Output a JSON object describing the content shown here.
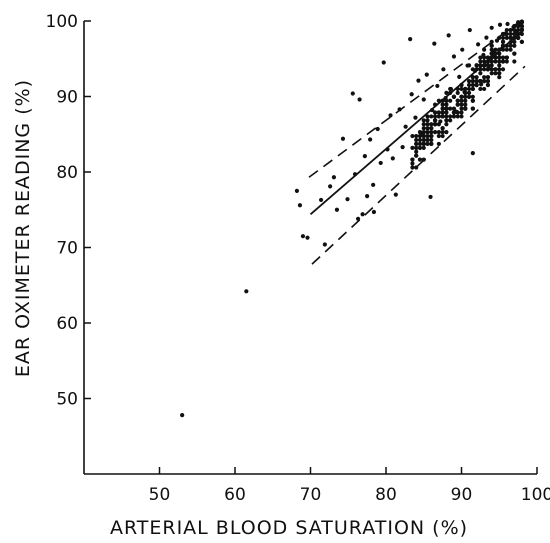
{
  "chart_data": {
    "type": "scatter",
    "title": "",
    "xlabel": "ARTERIAL BLOOD SATURATION (%)",
    "ylabel": "EAR OXIMETER READING (%)",
    "xlim": [
      40,
      100
    ],
    "ylim": [
      40,
      100
    ],
    "x_ticks": [
      50,
      60,
      70,
      80,
      90,
      100
    ],
    "y_ticks": [
      50,
      60,
      70,
      80,
      90,
      100
    ],
    "grid": false,
    "points": [
      {
        "x": 53,
        "y": 47.8
      },
      {
        "x": 61.5,
        "y": 64.2
      },
      {
        "x": 68.2,
        "y": 77.5
      },
      {
        "x": 68.6,
        "y": 75.6
      },
      {
        "x": 69.0,
        "y": 71.5
      },
      {
        "x": 69.6,
        "y": 71.3
      },
      {
        "x": 71.4,
        "y": 76.3
      },
      {
        "x": 71.9,
        "y": 70.4
      },
      {
        "x": 72.6,
        "y": 78.1
      },
      {
        "x": 73.1,
        "y": 79.3
      },
      {
        "x": 73.5,
        "y": 75.0
      },
      {
        "x": 74.3,
        "y": 84.4
      },
      {
        "x": 74.9,
        "y": 76.4
      },
      {
        "x": 75.6,
        "y": 90.4
      },
      {
        "x": 75.9,
        "y": 79.7
      },
      {
        "x": 76.3,
        "y": 73.8
      },
      {
        "x": 76.5,
        "y": 89.6
      },
      {
        "x": 76.9,
        "y": 74.4
      },
      {
        "x": 77.2,
        "y": 82.1
      },
      {
        "x": 77.5,
        "y": 76.8
      },
      {
        "x": 77.9,
        "y": 84.3
      },
      {
        "x": 78.3,
        "y": 78.3
      },
      {
        "x": 78.4,
        "y": 74.7
      },
      {
        "x": 78.9,
        "y": 85.7
      },
      {
        "x": 79.3,
        "y": 81.2
      },
      {
        "x": 79.7,
        "y": 94.5
      },
      {
        "x": 80.2,
        "y": 83.0
      },
      {
        "x": 80.6,
        "y": 87.5
      },
      {
        "x": 80.9,
        "y": 81.8
      },
      {
        "x": 81.3,
        "y": 77.0
      },
      {
        "x": 81.8,
        "y": 88.3
      },
      {
        "x": 82.2,
        "y": 83.3
      },
      {
        "x": 82.6,
        "y": 86.0
      },
      {
        "x": 83.2,
        "y": 97.6
      },
      {
        "x": 83.4,
        "y": 90.3
      },
      {
        "x": 83.9,
        "y": 87.2
      },
      {
        "x": 84.3,
        "y": 92.1
      },
      {
        "x": 84.7,
        "y": 85.2
      },
      {
        "x": 85.0,
        "y": 89.6
      },
      {
        "x": 85.4,
        "y": 92.9
      },
      {
        "x": 85.9,
        "y": 76.7
      },
      {
        "x": 86.1,
        "y": 88.2
      },
      {
        "x": 86.4,
        "y": 97.0
      },
      {
        "x": 86.8,
        "y": 91.4
      },
      {
        "x": 87.2,
        "y": 86.7
      },
      {
        "x": 87.6,
        "y": 93.6
      },
      {
        "x": 87.9,
        "y": 89.8
      },
      {
        "x": 88.3,
        "y": 98.1
      },
      {
        "x": 88.6,
        "y": 91.0
      },
      {
        "x": 89.0,
        "y": 95.3
      },
      {
        "x": 89.3,
        "y": 88.0
      },
      {
        "x": 89.7,
        "y": 92.6
      },
      {
        "x": 90.1,
        "y": 96.2
      },
      {
        "x": 90.4,
        "y": 90.6
      },
      {
        "x": 90.8,
        "y": 94.1
      },
      {
        "x": 91.1,
        "y": 98.8
      },
      {
        "x": 91.5,
        "y": 82.5
      },
      {
        "x": 91.8,
        "y": 93.4
      },
      {
        "x": 92.2,
        "y": 96.9
      },
      {
        "x": 92.6,
        "y": 91.6
      },
      {
        "x": 92.9,
        "y": 95.5
      },
      {
        "x": 93.3,
        "y": 97.8
      },
      {
        "x": 93.6,
        "y": 94.0
      },
      {
        "x": 94.0,
        "y": 99.1
      },
      {
        "x": 94.3,
        "y": 95.9
      },
      {
        "x": 94.7,
        "y": 97.4
      },
      {
        "x": 95.1,
        "y": 99.5
      },
      {
        "x": 95.4,
        "y": 96.4
      },
      {
        "x": 95.8,
        "y": 98.3
      },
      {
        "x": 96.1,
        "y": 99.6
      },
      {
        "x": 96.5,
        "y": 97.2
      },
      {
        "x": 96.9,
        "y": 99.2
      },
      {
        "x": 97.2,
        "y": 98.6
      },
      {
        "x": 97.6,
        "y": 99.7
      },
      {
        "x": 98.0,
        "y": 98.9
      },
      {
        "x": 97.9,
        "y": 99.8
      }
    ],
    "cluster": {
      "count": 360,
      "seed": 12345,
      "x_range": [
        83.5,
        98.3
      ],
      "slope": 1.11,
      "intercept": -9.9,
      "spread": 3.2,
      "x_step": 0.5,
      "y_step": 0.52,
      "y_max": 99.9
    },
    "regression_line": {
      "x": [
        70,
        98.2
      ],
      "y": [
        74.4,
        98.8
      ]
    },
    "prediction_bounds": {
      "upper": {
        "x": [
          69.8,
          97.8
        ],
        "y": [
          79.3,
          100
        ]
      },
      "lower": {
        "x": [
          70.2,
          98.4
        ],
        "y": [
          67.8,
          94.0
        ]
      }
    },
    "colors": {
      "ink": "#111111",
      "background": "#ffffff"
    }
  }
}
